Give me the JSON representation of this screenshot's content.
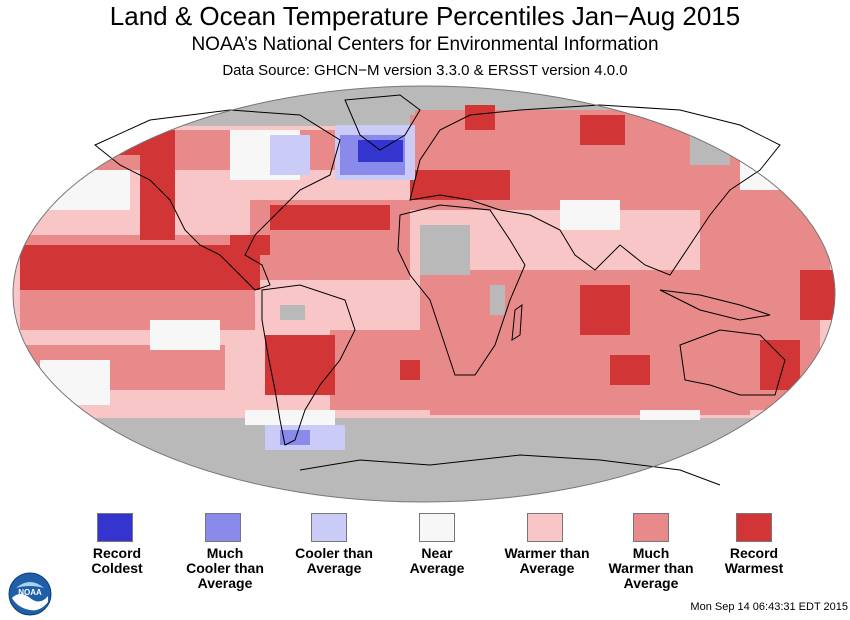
{
  "header": {
    "title": "Land & Ocean Temperature Percentiles Jan−Aug 2015",
    "subtitle": "NOAA’s National Centers for Environmental Information",
    "source": "Data Source: GHCN−M version 3.3.0 & ERSST version 4.0.0"
  },
  "colors": {
    "record_coldest": "#3434cf",
    "much_cooler": "#8a8aea",
    "cooler": "#cbcbf8",
    "near": "#f7f7f7",
    "warmer": "#f8c6c6",
    "much_warmer": "#e98a8a",
    "record_warmest": "#d13535",
    "missing": "#b9b9b9"
  },
  "legend": [
    {
      "lines": [
        "Record",
        "Coldest"
      ],
      "color": "#3434cf"
    },
    {
      "lines": [
        "Much",
        "Cooler than",
        "Average"
      ],
      "color": "#8a8aea"
    },
    {
      "lines": [
        "Cooler than",
        "Average"
      ],
      "color": "#cbcbf8"
    },
    {
      "lines": [
        "Near",
        "Average"
      ],
      "color": "#f7f7f7"
    },
    {
      "lines": [
        "Warmer than",
        "Average"
      ],
      "color": "#f8c6c6"
    },
    {
      "lines": [
        "Much",
        "Warmer than",
        "Average"
      ],
      "color": "#e98a8a"
    },
    {
      "lines": [
        "Record",
        "Warmest"
      ],
      "color": "#d13535"
    }
  ],
  "logo": {
    "text": "NOAA"
  },
  "footer": {
    "timestamp": "Mon Sep 14 06:43:31 EDT 2015"
  }
}
